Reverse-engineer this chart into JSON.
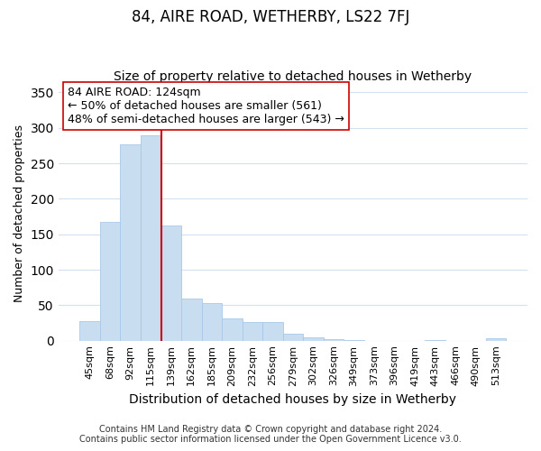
{
  "title": "84, AIRE ROAD, WETHERBY, LS22 7FJ",
  "subtitle": "Size of property relative to detached houses in Wetherby",
  "xlabel": "Distribution of detached houses by size in Wetherby",
  "ylabel": "Number of detached properties",
  "bar_color": "#c9ddf0",
  "bar_edge_color": "#a8c8e8",
  "categories": [
    "45sqm",
    "68sqm",
    "92sqm",
    "115sqm",
    "139sqm",
    "162sqm",
    "185sqm",
    "209sqm",
    "232sqm",
    "256sqm",
    "279sqm",
    "302sqm",
    "326sqm",
    "349sqm",
    "373sqm",
    "396sqm",
    "419sqm",
    "443sqm",
    "466sqm",
    "490sqm",
    "513sqm"
  ],
  "values": [
    28,
    168,
    277,
    289,
    162,
    59,
    53,
    32,
    26,
    26,
    10,
    5,
    2,
    1,
    0,
    0,
    0,
    1,
    0,
    0,
    3
  ],
  "vline_x_index": 4,
  "vline_color": "#cc0000",
  "annotation_line1": "84 AIRE ROAD: 124sqm",
  "annotation_line2": "← 50% of detached houses are smaller (561)",
  "annotation_line3": "48% of semi-detached houses are larger (543) →",
  "ylim": [
    0,
    360
  ],
  "yticks": [
    0,
    50,
    100,
    150,
    200,
    250,
    300,
    350
  ],
  "footer_line1": "Contains HM Land Registry data © Crown copyright and database right 2024.",
  "footer_line2": "Contains public sector information licensed under the Open Government Licence v3.0.",
  "background_color": "#ffffff",
  "grid_color": "#d4dff0",
  "title_fontsize": 12,
  "subtitle_fontsize": 10,
  "xlabel_fontsize": 10,
  "ylabel_fontsize": 9,
  "tick_fontsize": 8,
  "footer_fontsize": 7,
  "annotation_fontsize": 9
}
